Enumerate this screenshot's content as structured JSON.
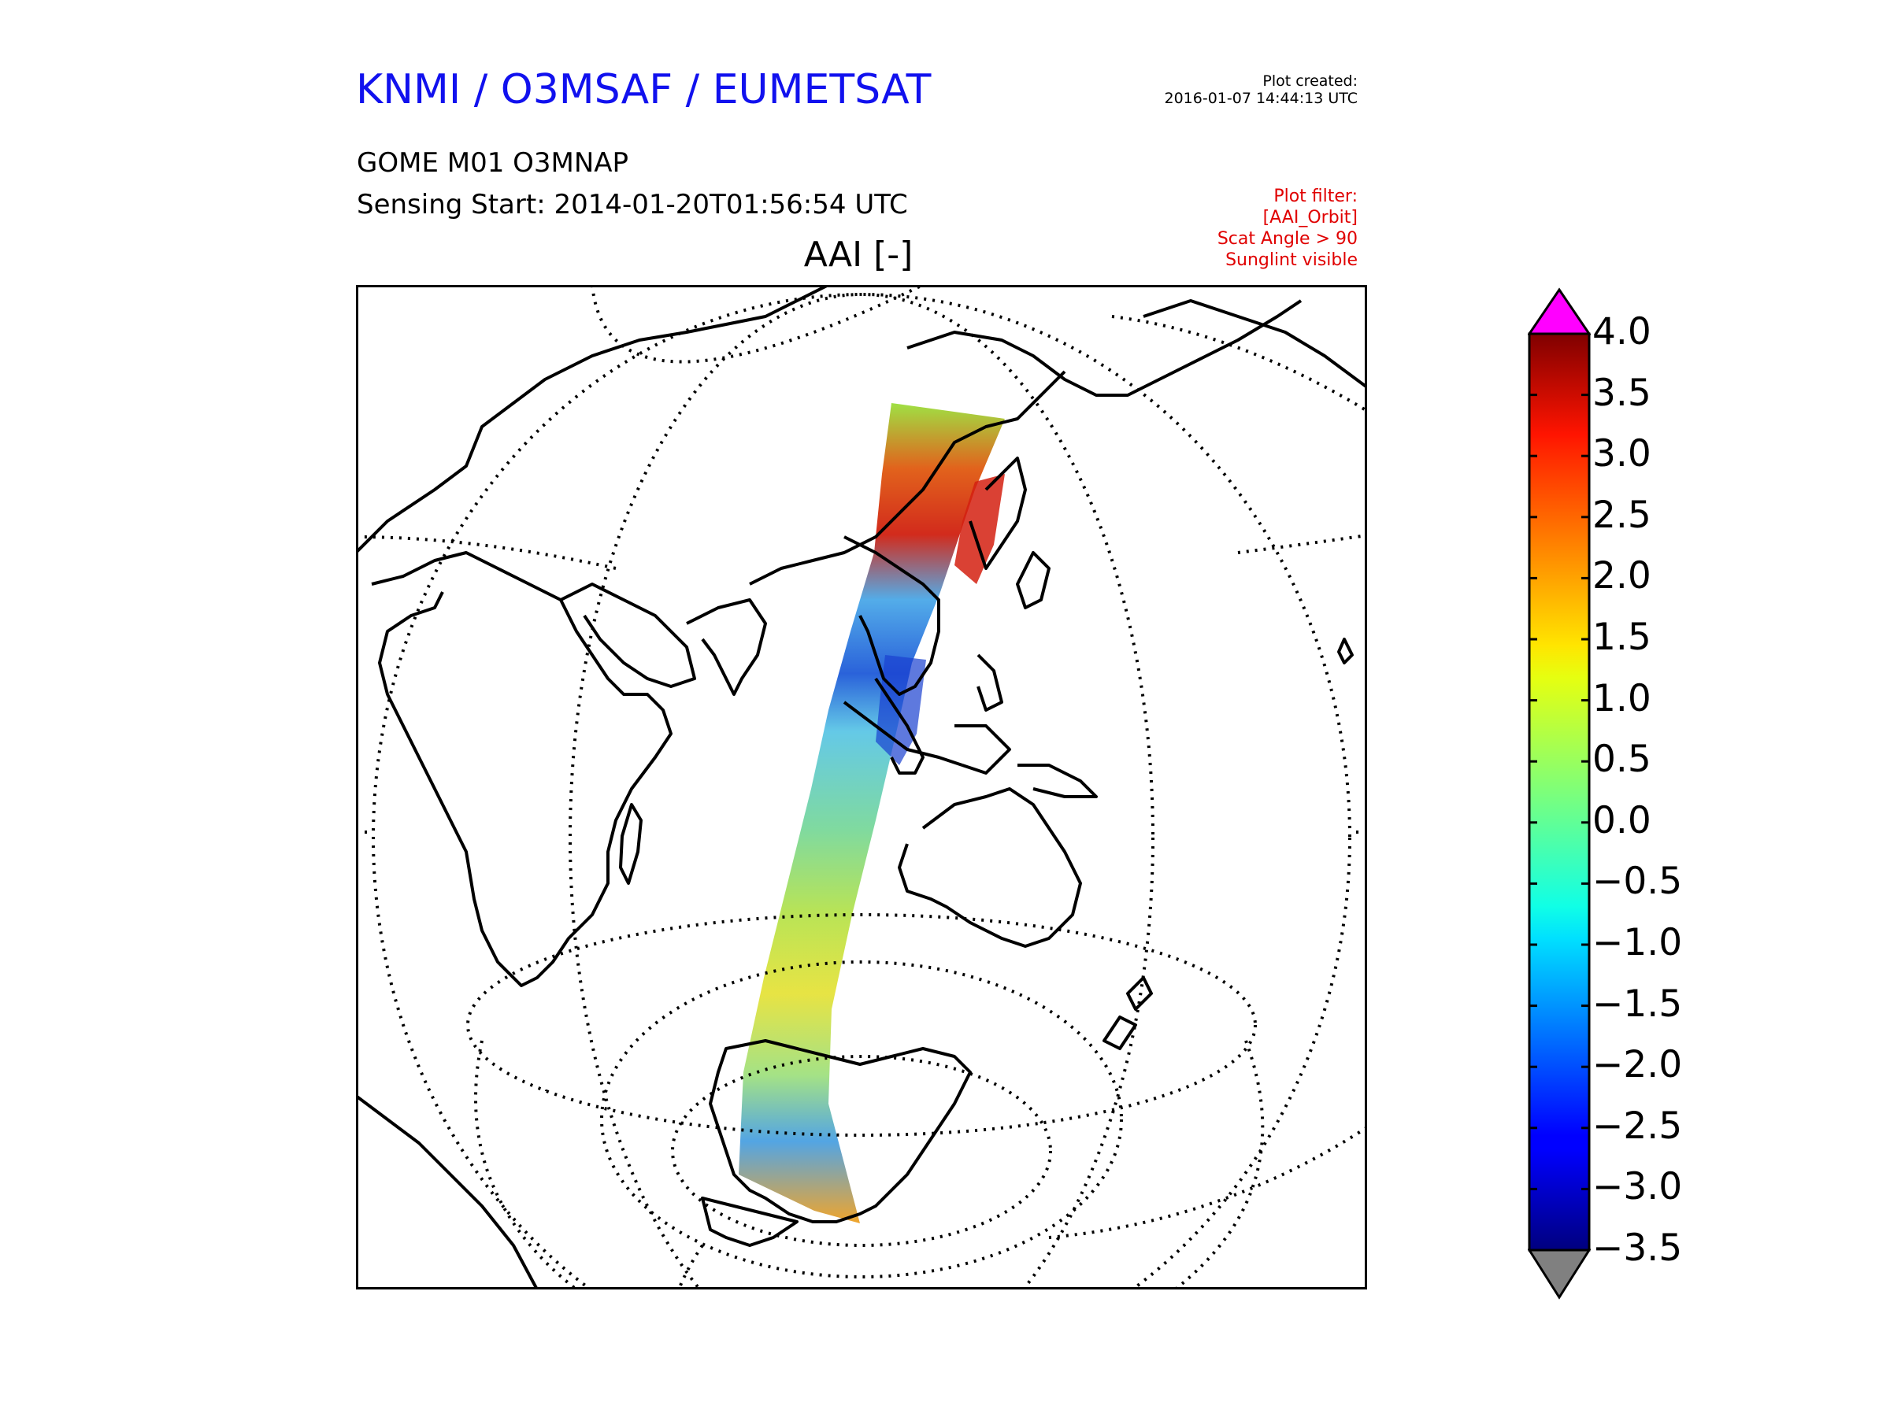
{
  "header": {
    "org_title": "KNMI / O3MSAF / EUMETSAT",
    "created_label": "Plot created:",
    "created_value": "2016-01-07 14:44:13 UTC",
    "product": "GOME M01 O3MNAP",
    "sensing_start": "Sensing Start: 2014-01-20T01:56:54 UTC",
    "plot_filter": [
      "Plot filter:",
      "[AAI_Orbit]",
      "Scat Angle > 90",
      "Sunglint visible"
    ]
  },
  "map": {
    "title": "AAI [-]",
    "projection": "orthographic"
  },
  "colorbar": {
    "min": -3.5,
    "max": 4.0,
    "colormap": "jet",
    "over_color": "#ff00ff",
    "under_color": "#808080",
    "tick_labels": [
      "4.0",
      "3.5",
      "3.0",
      "2.5",
      "2.0",
      "1.5",
      "1.0",
      "0.5",
      "0.0",
      "−0.5",
      "−1.0",
      "−1.5",
      "−2.0",
      "−2.5",
      "−3.0",
      "−3.5"
    ]
  },
  "colors": {
    "title_blue": "#1111ee",
    "filter_red": "#e00000"
  }
}
